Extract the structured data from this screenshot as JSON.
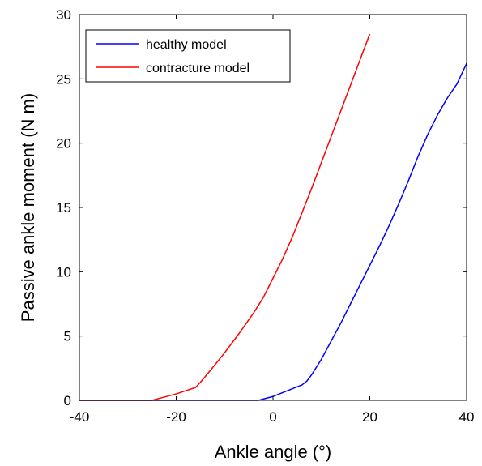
{
  "chart_data": {
    "type": "line",
    "title": "",
    "xlabel": "Ankle angle (°)",
    "ylabel": "Passive ankle moment (N m)",
    "xlim": [
      -40,
      40
    ],
    "ylim": [
      0,
      30
    ],
    "x_ticks": [
      -40,
      -20,
      0,
      20,
      40
    ],
    "y_ticks": [
      0,
      5,
      10,
      15,
      20,
      25,
      30
    ],
    "grid": false,
    "legend_position": "top-left",
    "series": [
      {
        "name": "healthy model",
        "color": "#0000ff",
        "points": [
          [
            -40,
            0
          ],
          [
            -3,
            0
          ],
          [
            -2,
            0.1
          ],
          [
            0,
            0.3
          ],
          [
            2,
            0.6
          ],
          [
            4,
            0.9
          ],
          [
            6,
            1.2
          ],
          [
            7,
            1.5
          ],
          [
            8,
            2.0
          ],
          [
            10,
            3.2
          ],
          [
            12,
            4.6
          ],
          [
            14,
            6.0
          ],
          [
            16,
            7.5
          ],
          [
            18,
            9.0
          ],
          [
            20,
            10.5
          ],
          [
            22,
            12.0
          ],
          [
            24,
            13.6
          ],
          [
            26,
            15.3
          ],
          [
            28,
            17.1
          ],
          [
            30,
            19.0
          ],
          [
            32,
            20.7
          ],
          [
            34,
            22.2
          ],
          [
            36,
            23.5
          ],
          [
            38,
            24.6
          ],
          [
            40,
            26.2
          ]
        ]
      },
      {
        "name": "contracture model",
        "color": "#ff0000",
        "points": [
          [
            -40,
            0
          ],
          [
            -25,
            0
          ],
          [
            -23,
            0.2
          ],
          [
            -20,
            0.5
          ],
          [
            -18,
            0.75
          ],
          [
            -16,
            1.0
          ],
          [
            -15,
            1.4
          ],
          [
            -13,
            2.3
          ],
          [
            -10,
            3.7
          ],
          [
            -7,
            5.2
          ],
          [
            -4,
            6.8
          ],
          [
            -2,
            8.0
          ],
          [
            0,
            9.5
          ],
          [
            2,
            11.0
          ],
          [
            4,
            12.7
          ],
          [
            6,
            14.6
          ],
          [
            8,
            16.5
          ],
          [
            10,
            18.5
          ],
          [
            12,
            20.5
          ],
          [
            14,
            22.5
          ],
          [
            16,
            24.5
          ],
          [
            18,
            26.5
          ],
          [
            20,
            28.5
          ]
        ]
      }
    ]
  }
}
